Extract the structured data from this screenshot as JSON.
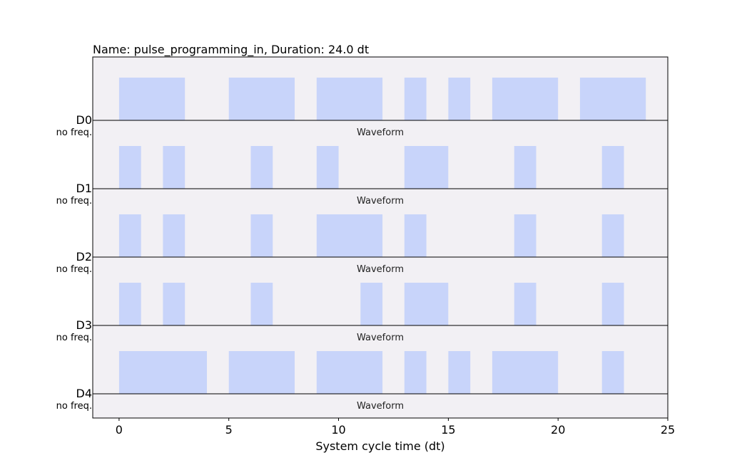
{
  "chart_data": {
    "type": "bar",
    "title": "Name: pulse_programming_in, Duration: 24.0 dt",
    "xlabel": "System cycle time (dt)",
    "xlim": [
      -1.2,
      25
    ],
    "xticks": [
      "0",
      "5",
      "10",
      "15",
      "20",
      "25"
    ],
    "xtick_values": [
      0,
      5,
      10,
      15,
      20,
      25
    ],
    "pulse_color": "#c8d4fa",
    "background_color": "#f2f0f4",
    "channels": [
      {
        "name": "D0",
        "freq_label": "no freq.",
        "wave_label": "Waveform",
        "pulses": [
          [
            0,
            3
          ],
          [
            5,
            8
          ],
          [
            9,
            12
          ],
          [
            13,
            14
          ],
          [
            15,
            16
          ],
          [
            17,
            20
          ],
          [
            21,
            24
          ]
        ]
      },
      {
        "name": "D1",
        "freq_label": "no freq.",
        "wave_label": "Waveform",
        "pulses": [
          [
            0,
            1
          ],
          [
            2,
            3
          ],
          [
            6,
            7
          ],
          [
            9,
            10
          ],
          [
            13,
            15
          ],
          [
            18,
            19
          ],
          [
            22,
            23
          ]
        ]
      },
      {
        "name": "D2",
        "freq_label": "no freq.",
        "wave_label": "Waveform",
        "pulses": [
          [
            0,
            1
          ],
          [
            2,
            3
          ],
          [
            6,
            7
          ],
          [
            9,
            12
          ],
          [
            13,
            14
          ],
          [
            18,
            19
          ],
          [
            22,
            23
          ]
        ]
      },
      {
        "name": "D3",
        "freq_label": "no freq.",
        "wave_label": "Waveform",
        "pulses": [
          [
            0,
            1
          ],
          [
            2,
            3
          ],
          [
            6,
            7
          ],
          [
            11,
            12
          ],
          [
            13,
            15
          ],
          [
            18,
            19
          ],
          [
            22,
            23
          ]
        ]
      },
      {
        "name": "D4",
        "freq_label": "no freq.",
        "wave_label": "Waveform",
        "pulses": [
          [
            0,
            4
          ],
          [
            5,
            8
          ],
          [
            9,
            12
          ],
          [
            13,
            14
          ],
          [
            15,
            16
          ],
          [
            17,
            20
          ],
          [
            22,
            23
          ]
        ]
      }
    ]
  }
}
